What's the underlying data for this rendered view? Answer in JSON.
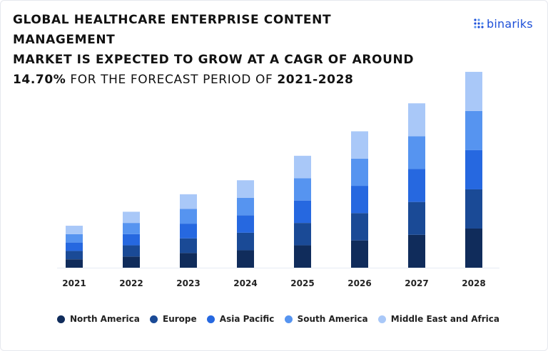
{
  "title": {
    "line1": "GLOBAL HEALTHCARE ENTERPRISE CONTENT MANAGEMENT",
    "line2": "MARKET IS EXPECTED TO GROW AT A CAGR OF AROUND",
    "cagr": "14.70%",
    "mid": " FOR THE FORECAST PERIOD OF ",
    "period": "2021-2028"
  },
  "logo": {
    "text": "binariks",
    "color": "#1d4fd8",
    "icon": "dots-grid-icon"
  },
  "chart_data": {
    "type": "bar",
    "stacked": true,
    "categories": [
      "2021",
      "2022",
      "2023",
      "2024",
      "2025",
      "2026",
      "2027",
      "2028"
    ],
    "series": [
      {
        "name": "North America",
        "color": "#102c5b",
        "values": [
          12,
          16,
          21,
          25,
          32,
          39,
          47,
          56
        ]
      },
      {
        "name": "Europe",
        "color": "#1a4a96",
        "values": [
          12,
          16,
          21,
          25,
          32,
          39,
          47,
          56
        ]
      },
      {
        "name": "Asia Pacific",
        "color": "#2668e0",
        "values": [
          12,
          16,
          21,
          25,
          32,
          39,
          47,
          56
        ]
      },
      {
        "name": "South America",
        "color": "#5694f0",
        "values": [
          12,
          16,
          21,
          25,
          32,
          39,
          47,
          56
        ]
      },
      {
        "name": "Middle East and Africa",
        "color": "#a9c8f8",
        "values": [
          12,
          16,
          21,
          25,
          32,
          39,
          47,
          56
        ]
      }
    ],
    "ylim": [
      0,
      285
    ],
    "axis_visible": false,
    "grid": false,
    "legend_position": "bottom"
  }
}
